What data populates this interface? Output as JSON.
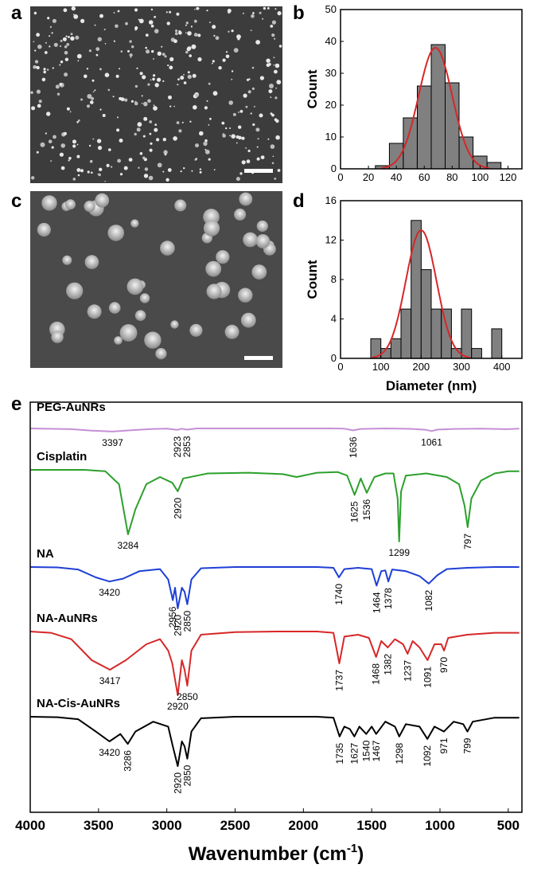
{
  "panel_letters": {
    "a": "a",
    "b": "b",
    "c": "c",
    "d": "d",
    "e": "e"
  },
  "chart_data": [
    {
      "panel": "b",
      "type": "bar",
      "title": "",
      "xlabel": "",
      "ylabel": "Count",
      "xlim": [
        0,
        130
      ],
      "ylim": [
        0,
        50
      ],
      "xticks": [
        0,
        20,
        40,
        60,
        80,
        100,
        120
      ],
      "yticks": [
        0,
        10,
        20,
        30,
        40,
        50
      ],
      "bin_width": 10,
      "bin_centers": [
        30,
        40,
        50,
        60,
        70,
        80,
        90,
        100,
        110
      ],
      "values": [
        1,
        8,
        16,
        26,
        39,
        27,
        10,
        4,
        2
      ],
      "bar_color": "#808080",
      "fit": {
        "type": "gaussian",
        "amplitude": 38,
        "center": 68,
        "sigma": 12,
        "color": "#d62728"
      }
    },
    {
      "panel": "d",
      "type": "bar",
      "title": "",
      "xlabel": "Diameter (nm)",
      "ylabel": "Count",
      "xlim": [
        0,
        450
      ],
      "ylim": [
        0,
        16
      ],
      "xticks": [
        0,
        100,
        200,
        300,
        400
      ],
      "yticks": [
        0,
        4,
        8,
        12,
        16
      ],
      "bin_width": 25,
      "bin_centers": [
        87.5,
        112.5,
        137.5,
        162.5,
        187.5,
        212.5,
        237.5,
        262.5,
        287.5,
        312.5,
        337.5,
        362.5,
        387.5
      ],
      "values": [
        2,
        1,
        2,
        5,
        14,
        9,
        5,
        5,
        1,
        5,
        1,
        0,
        3
      ],
      "bar_color": "#808080",
      "fit": {
        "type": "gaussian",
        "amplitude": 13,
        "center": 200,
        "sigma": 38,
        "color": "#d62728"
      }
    },
    {
      "panel": "e",
      "type": "line",
      "title": "",
      "xlabel": "Wavenumber (cm",
      "xlabel_sup": "-1",
      "xlabel_end": ")",
      "ylabel": "",
      "xlim": [
        4000,
        400
      ],
      "xticks": [
        4000,
        3500,
        3000,
        2500,
        2000,
        1500,
        1000,
        500
      ],
      "series": [
        {
          "name": "PEG-AuNRs",
          "color": "#c58fd6",
          "x": [
            4000,
            3700,
            3550,
            3397,
            3250,
            3100,
            3000,
            2923,
            2890,
            2853,
            2780,
            2600,
            2300,
            2000,
            1800,
            1700,
            1636,
            1580,
            1400,
            1200,
            1100,
            1061,
            1020,
            900,
            700,
            500,
            420
          ],
          "y": [
            0,
            0.03,
            0.09,
            0.13,
            0.07,
            0.02,
            0.01,
            0.06,
            0.01,
            0.05,
            0,
            0,
            0,
            0,
            0,
            0.01,
            0.08,
            0.02,
            0,
            0.02,
            0.06,
            0.11,
            0.05,
            0.02,
            0.01,
            0.03,
            0.01
          ],
          "peaks": [
            {
              "label": "3397",
              "x": 3397,
              "vertical": false
            },
            {
              "label": "2923",
              "x": 2923,
              "vertical": true
            },
            {
              "label": "2853",
              "x": 2853,
              "vertical": true
            },
            {
              "label": "1636",
              "x": 1636,
              "vertical": true
            },
            {
              "label": "1061",
              "x": 1061,
              "vertical": false
            }
          ]
        },
        {
          "name": "Cisplatin",
          "color": "#2ca02c",
          "x": [
            4000,
            3800,
            3600,
            3450,
            3350,
            3284,
            3230,
            3150,
            3050,
            2960,
            2920,
            2880,
            2700,
            2400,
            2150,
            2050,
            1900,
            1750,
            1680,
            1625,
            1580,
            1536,
            1480,
            1400,
            1340,
            1310,
            1299,
            1285,
            1250,
            1100,
            950,
            860,
            820,
            797,
            770,
            700,
            600,
            500,
            420
          ],
          "y": [
            0,
            0,
            0,
            0.02,
            0.2,
            0.9,
            0.55,
            0.2,
            0.1,
            0.18,
            0.3,
            0.12,
            0.05,
            0.04,
            0.06,
            0.1,
            0.04,
            0.03,
            0.08,
            0.35,
            0.12,
            0.32,
            0.1,
            0.05,
            0.05,
            0.4,
            1.0,
            0.3,
            0.08,
            0.05,
            0.1,
            0.2,
            0.5,
            0.8,
            0.4,
            0.15,
            0.05,
            0.02,
            0.02
          ],
          "peaks": [
            {
              "label": "3284",
              "x": 3284,
              "vertical": false
            },
            {
              "label": "2920",
              "x": 2920,
              "vertical": true
            },
            {
              "label": "1625",
              "x": 1625,
              "vertical": true
            },
            {
              "label": "1536",
              "x": 1536,
              "vertical": true
            },
            {
              "label": "1299",
              "x": 1299,
              "vertical": false
            },
            {
              "label": "797",
              "x": 797,
              "vertical": true
            }
          ]
        },
        {
          "name": "NA",
          "color": "#1f3fd6",
          "x": [
            4000,
            3800,
            3650,
            3520,
            3420,
            3320,
            3200,
            3050,
            2990,
            2956,
            2940,
            2920,
            2890,
            2870,
            2850,
            2820,
            2750,
            2500,
            2200,
            1900,
            1780,
            1740,
            1700,
            1600,
            1500,
            1464,
            1430,
            1400,
            1378,
            1350,
            1250,
            1150,
            1082,
            1020,
            950,
            800,
            600,
            420
          ],
          "y": [
            0,
            0.01,
            0.06,
            0.25,
            0.35,
            0.28,
            0.1,
            0.05,
            0.3,
            0.8,
            0.5,
            1.0,
            0.5,
            0.6,
            0.9,
            0.3,
            0.03,
            0,
            0,
            0,
            0.02,
            0.25,
            0.05,
            0.02,
            0.05,
            0.45,
            0.1,
            0.08,
            0.35,
            0.06,
            0.1,
            0.22,
            0.4,
            0.2,
            0.05,
            0.02,
            0,
            0
          ],
          "peaks": [
            {
              "label": "3420",
              "x": 3420,
              "vertical": false
            },
            {
              "label": "2956",
              "x": 2956,
              "vertical": true
            },
            {
              "label": "2920",
              "x": 2920,
              "vertical": true
            },
            {
              "label": "2850",
              "x": 2850,
              "vertical": true
            },
            {
              "label": "1740",
              "x": 1740,
              "vertical": true
            },
            {
              "label": "1464",
              "x": 1464,
              "vertical": true
            },
            {
              "label": "1378",
              "x": 1378,
              "vertical": true
            },
            {
              "label": "1082",
              "x": 1082,
              "vertical": true
            }
          ]
        },
        {
          "name": "NA-AuNRs",
          "color": "#d62728",
          "x": [
            4000,
            3850,
            3700,
            3550,
            3417,
            3300,
            3150,
            3050,
            2990,
            2960,
            2920,
            2890,
            2870,
            2850,
            2820,
            2750,
            2500,
            2200,
            1900,
            1780,
            1737,
            1700,
            1600,
            1520,
            1468,
            1430,
            1382,
            1330,
            1270,
            1237,
            1200,
            1150,
            1091,
            1040,
            990,
            970,
            940,
            800,
            600,
            420
          ],
          "y": [
            0,
            0.02,
            0.12,
            0.45,
            0.6,
            0.45,
            0.2,
            0.12,
            0.3,
            0.5,
            1.0,
            0.45,
            0.6,
            0.85,
            0.3,
            0.05,
            0.01,
            0,
            0,
            0.02,
            0.5,
            0.08,
            0.05,
            0.1,
            0.4,
            0.15,
            0.25,
            0.12,
            0.2,
            0.35,
            0.15,
            0.25,
            0.45,
            0.2,
            0.2,
            0.3,
            0.1,
            0.05,
            0.02,
            0.02
          ],
          "peaks": [
            {
              "label": "3417",
              "x": 3417,
              "vertical": false
            },
            {
              "label": "2920",
              "x": 2920,
              "vertical": false
            },
            {
              "label": "2850",
              "x": 2850,
              "vertical": false
            },
            {
              "label": "1737",
              "x": 1737,
              "vertical": true
            },
            {
              "label": "1468",
              "x": 1468,
              "vertical": true
            },
            {
              "label": "1382",
              "x": 1382,
              "vertical": true
            },
            {
              "label": "1237",
              "x": 1237,
              "vertical": true
            },
            {
              "label": "1091",
              "x": 1091,
              "vertical": true
            },
            {
              "label": "970",
              "x": 970,
              "vertical": true
            }
          ]
        },
        {
          "name": "NA-Cis-AuNRs",
          "color": "#000000",
          "x": [
            4000,
            3800,
            3650,
            3520,
            3420,
            3340,
            3286,
            3230,
            3100,
            2990,
            2956,
            2920,
            2890,
            2870,
            2850,
            2820,
            2750,
            2500,
            2200,
            1900,
            1780,
            1735,
            1700,
            1660,
            1627,
            1590,
            1540,
            1500,
            1467,
            1400,
            1330,
            1298,
            1250,
            1150,
            1092,
            1040,
            971,
            900,
            830,
            799,
            760,
            600,
            420
          ],
          "y": [
            0,
            0.01,
            0.05,
            0.3,
            0.5,
            0.35,
            0.55,
            0.3,
            0.1,
            0.2,
            0.6,
            1.0,
            0.5,
            0.6,
            0.85,
            0.3,
            0.03,
            0,
            0,
            0,
            0.02,
            0.4,
            0.2,
            0.25,
            0.4,
            0.2,
            0.35,
            0.2,
            0.35,
            0.1,
            0.2,
            0.4,
            0.15,
            0.2,
            0.45,
            0.2,
            0.3,
            0.1,
            0.15,
            0.3,
            0.1,
            0.02,
            0.02
          ],
          "peaks": [
            {
              "label": "3420",
              "x": 3420,
              "vertical": false
            },
            {
              "label": "3286",
              "x": 3286,
              "vertical": true
            },
            {
              "label": "2920",
              "x": 2920,
              "vertical": true
            },
            {
              "label": "2850",
              "x": 2850,
              "vertical": true
            },
            {
              "label": "1735",
              "x": 1735,
              "vertical": true
            },
            {
              "label": "1627",
              "x": 1627,
              "vertical": true
            },
            {
              "label": "1540",
              "x": 1540,
              "vertical": true
            },
            {
              "label": "1467",
              "x": 1467,
              "vertical": true
            },
            {
              "label": "1298",
              "x": 1298,
              "vertical": true
            },
            {
              "label": "1092",
              "x": 1092,
              "vertical": true
            },
            {
              "label": "971",
              "x": 971,
              "vertical": true
            },
            {
              "label": "799",
              "x": 799,
              "vertical": true
            }
          ]
        }
      ]
    }
  ]
}
